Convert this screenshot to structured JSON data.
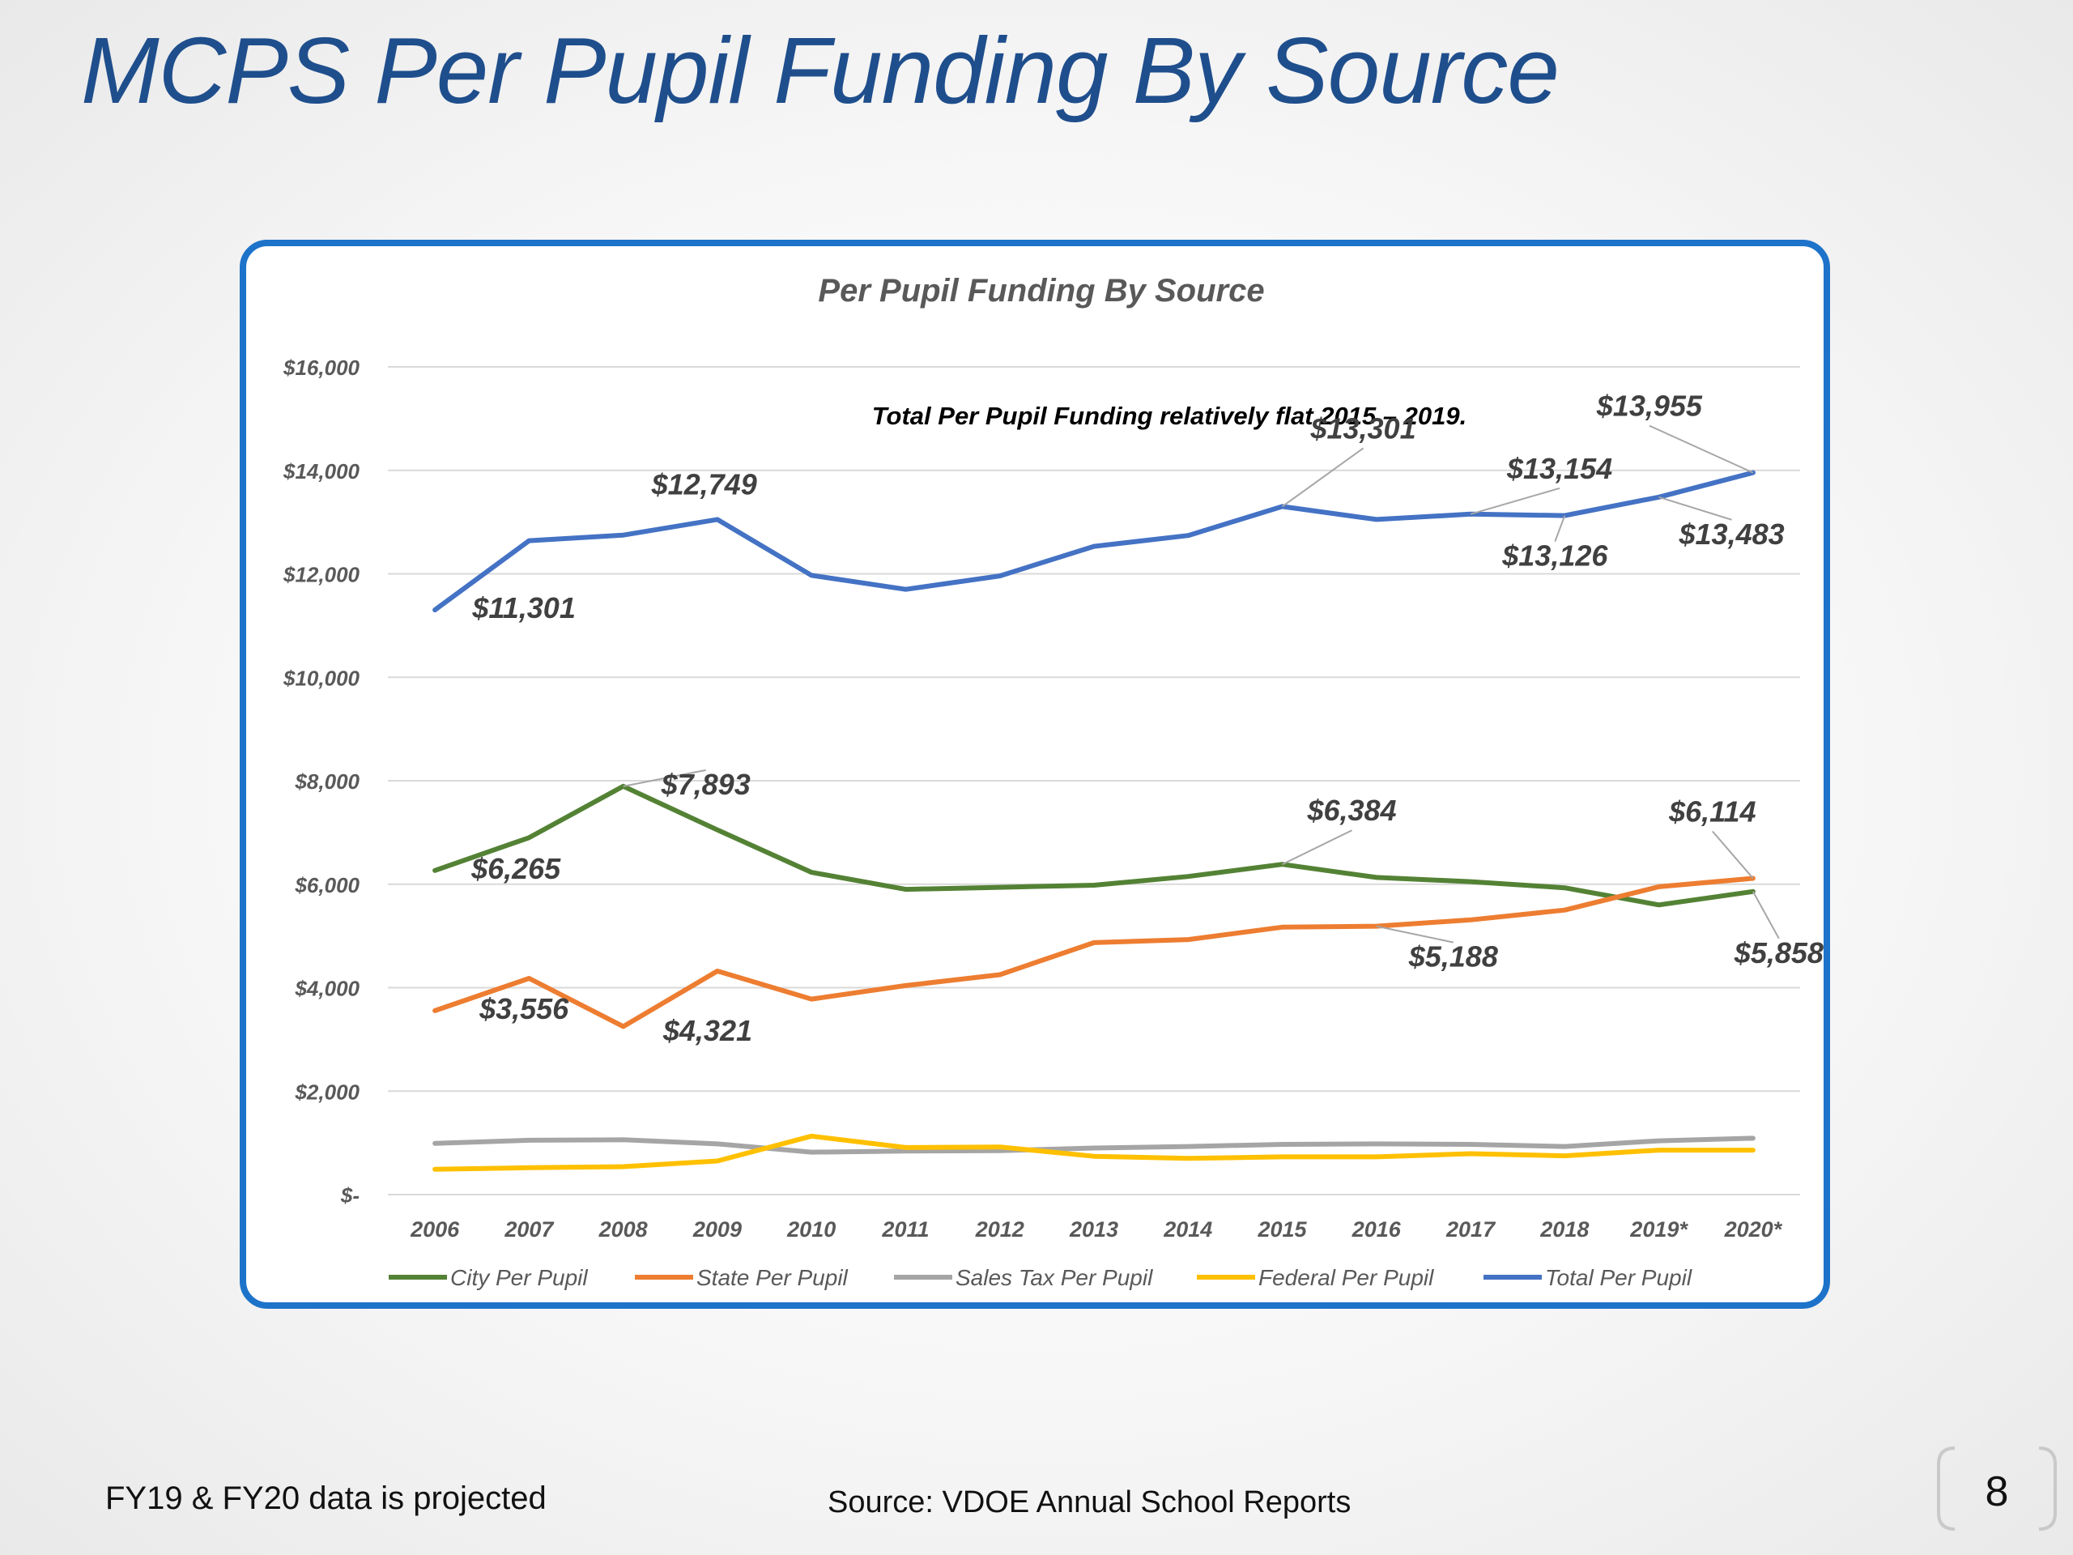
{
  "slide": {
    "title": "MCPS Per Pupil Funding By Source",
    "footnote": "FY19 & FY20 data is projected",
    "source": "Source:  VDOE Annual School Reports",
    "page_number": "8"
  },
  "chart_data": {
    "type": "line",
    "title": "Per Pupil Funding By Source",
    "annotation": "Total Per Pupil Funding relatively flat 2015 – 2019.",
    "categories": [
      "2006",
      "2007",
      "2008",
      "2009",
      "2010",
      "2011",
      "2012",
      "2013",
      "2014",
      "2015",
      "2016",
      "2017",
      "2018",
      "2019*",
      "2020*"
    ],
    "ylim": [
      0,
      16000
    ],
    "yticks": [
      {
        "value": 0,
        "label": "$-"
      },
      {
        "value": 2000,
        "label": "$2,000"
      },
      {
        "value": 4000,
        "label": "$4,000"
      },
      {
        "value": 6000,
        "label": "$6,000"
      },
      {
        "value": 8000,
        "label": "$8,000"
      },
      {
        "value": 10000,
        "label": "$10,000"
      },
      {
        "value": 12000,
        "label": "$12,000"
      },
      {
        "value": 14000,
        "label": "$14,000"
      },
      {
        "value": 16000,
        "label": "$16,000"
      }
    ],
    "grid": true,
    "legend_position": "bottom",
    "series": [
      {
        "name": "City Per Pupil",
        "color": "#548235",
        "values": [
          6265,
          6900,
          7893,
          7050,
          6230,
          5900,
          5940,
          5980,
          6150,
          6384,
          6130,
          6050,
          5930,
          5600,
          5858
        ]
      },
      {
        "name": "State Per Pupil",
        "color": "#ed7d31",
        "values": [
          3556,
          4180,
          3250,
          4321,
          3780,
          4040,
          4250,
          4870,
          4930,
          5170,
          5188,
          5310,
          5500,
          5950,
          6114
        ]
      },
      {
        "name": "Sales Tax Per Pupil",
        "color": "#a5a5a5",
        "values": [
          990,
          1050,
          1060,
          980,
          820,
          840,
          850,
          900,
          930,
          970,
          980,
          970,
          930,
          1040,
          1090
        ]
      },
      {
        "name": "Federal Per Pupil",
        "color": "#ffc000",
        "values": [
          490,
          520,
          540,
          650,
          1130,
          910,
          920,
          740,
          700,
          730,
          730,
          790,
          750,
          860,
          860
        ]
      },
      {
        "name": "Total Per Pupil",
        "color": "#4472c4",
        "values": [
          11301,
          12640,
          12749,
          13050,
          11970,
          11700,
          11960,
          12530,
          12740,
          13301,
          13050,
          13154,
          13126,
          13483,
          13955
        ]
      }
    ],
    "data_labels": [
      {
        "series": 4,
        "index": 0,
        "text": "$11,301"
      },
      {
        "series": 4,
        "index": 2,
        "text": "$12,749"
      },
      {
        "series": 4,
        "index": 9,
        "text": "$13,301"
      },
      {
        "series": 4,
        "index": 11,
        "text": "$13,154"
      },
      {
        "series": 4,
        "index": 12,
        "text": "$13,126"
      },
      {
        "series": 4,
        "index": 13,
        "text": "$13,483"
      },
      {
        "series": 4,
        "index": 14,
        "text": "$13,955"
      },
      {
        "series": 0,
        "index": 0,
        "text": "$6,265"
      },
      {
        "series": 0,
        "index": 2,
        "text": "$7,893"
      },
      {
        "series": 0,
        "index": 9,
        "text": "$6,384"
      },
      {
        "series": 0,
        "index": 14,
        "text": "$5,858"
      },
      {
        "series": 1,
        "index": 0,
        "text": "$3,556"
      },
      {
        "series": 1,
        "index": 3,
        "text": "$4,321"
      },
      {
        "series": 1,
        "index": 10,
        "text": "$5,188"
      },
      {
        "series": 1,
        "index": 14,
        "text": "$6,114"
      }
    ]
  }
}
